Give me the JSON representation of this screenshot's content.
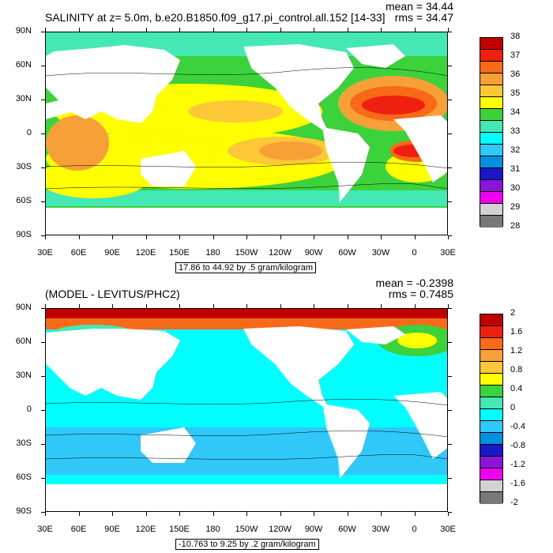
{
  "top": {
    "title": "SALINITY at z=   5.0m, b.e20.B1850.f09_g17.pi_control.all.152 [14-33]",
    "mean": "mean = 34.44",
    "rms": "rms = 34.47",
    "info": "17.86 to 44.92 by .5 gram/kilogram",
    "lat_labels": [
      "90N",
      "60N",
      "30N",
      "0",
      "30S",
      "60S",
      "90S"
    ],
    "lon_labels": [
      "30E",
      "60E",
      "90E",
      "120E",
      "150E",
      "180",
      "150W",
      "120W",
      "90W",
      "60W",
      "30W",
      "0",
      "30E"
    ],
    "colorbar_labels": [
      "38",
      "37",
      "36",
      "35",
      "34",
      "33",
      "32",
      "31",
      "30",
      "29",
      "28"
    ],
    "colorbar_colors": [
      "#c00000",
      "#ef2010",
      "#f86a18",
      "#f8a038",
      "#fcc838",
      "#ffff00",
      "#3cd23c",
      "#44e8b4",
      "#00ffff",
      "#30c8f8",
      "#0090e0",
      "#1818c8",
      "#8c14d8",
      "#f000f0",
      "#d2d2d2",
      "#787878"
    ]
  },
  "bottom": {
    "title": "(MODEL - LEVITUS/PHC2)",
    "mean": "mean = -0.2398",
    "rms": "rms = 0.7485",
    "info": "-10.763 to 9.25 by .2 gram/kilogram",
    "lat_labels": [
      "90N",
      "60N",
      "30N",
      "0",
      "30S",
      "60S",
      "90S"
    ],
    "lon_labels": [
      "30E",
      "60E",
      "90E",
      "120E",
      "150E",
      "180",
      "150W",
      "120W",
      "90W",
      "60W",
      "30W",
      "0",
      "30E"
    ],
    "colorbar_labels": [
      "2",
      "1.6",
      "1.2",
      "0.8",
      "0.4",
      "0",
      "-0.4",
      "-0.8",
      "-1.2",
      "-1.6",
      "-2"
    ],
    "colorbar_colors": [
      "#c00000",
      "#ef2010",
      "#f86a18",
      "#f8a038",
      "#fcc838",
      "#ffff00",
      "#3cd23c",
      "#44e8b4",
      "#00ffff",
      "#30c8f8",
      "#0090e0",
      "#1818c8",
      "#8c14d8",
      "#f000f0",
      "#d2d2d2",
      "#787878"
    ]
  }
}
